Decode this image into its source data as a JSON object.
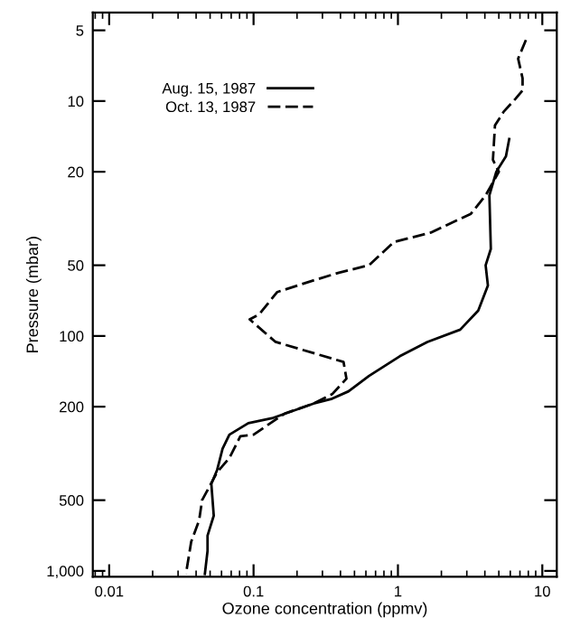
{
  "chart_data": {
    "type": "line",
    "xlabel": "Ozone concentration (ppmv)",
    "ylabel": "Pressure (mbar)",
    "log": "xy",
    "xlim": [
      0.0077,
      12.6
    ],
    "ylim": [
      1060,
      4.2
    ],
    "xticks": [
      0.01,
      0.1,
      1,
      10
    ],
    "yticks": [
      5,
      10,
      20,
      50,
      100,
      200,
      500,
      {
        "value": 1000,
        "label": "1,000"
      }
    ],
    "grid": false,
    "legend": "top left",
    "series": [
      {
        "name": "Aug. 15, 1987",
        "color": "#000000",
        "line_style": "solid",
        "x": [
          5.9,
          5.6,
          4.8,
          4.3,
          4.4,
          4.05,
          4.2,
          3.6,
          2.7,
          1.6,
          1.03,
          0.63,
          0.455,
          0.35,
          0.26,
          0.134,
          0.092,
          0.068,
          0.061,
          0.056,
          0.051,
          0.053,
          0.048,
          0.048,
          0.046
        ],
        "values": [
          14.5,
          17.2,
          20,
          25.2,
          42.6,
          50,
          61,
          78,
          94,
          106,
          122,
          148,
          172,
          185,
          194,
          224,
          235,
          263,
          302,
          371,
          426,
          582,
          708,
          822,
          1030
        ]
      },
      {
        "name": "Oct. 13, 1987",
        "color": "#000000",
        "line_style": "dashed",
        "x": [
          7.7,
          6.8,
          7.3,
          7.3,
          6.5,
          5.4,
          4.7,
          4.55,
          5.0,
          4.05,
          3.2,
          1.69,
          0.94,
          0.63,
          0.39,
          0.26,
          0.146,
          0.109,
          0.094,
          0.142,
          0.42,
          0.44,
          0.35,
          0.26,
          0.164,
          0.1,
          0.081,
          0.068,
          0.056,
          0.044,
          0.042,
          0.037,
          0.034
        ],
        "values": [
          5.5,
          6.6,
          8.0,
          9.0,
          9.8,
          11.1,
          12.7,
          17.8,
          20,
          25.2,
          30.2,
          36.3,
          39.8,
          50,
          53.8,
          58,
          65,
          81,
          85,
          106,
          129,
          152,
          177,
          194,
          214,
          263,
          267,
          331,
          380,
          500,
          608,
          751,
          1030
        ]
      }
    ]
  }
}
